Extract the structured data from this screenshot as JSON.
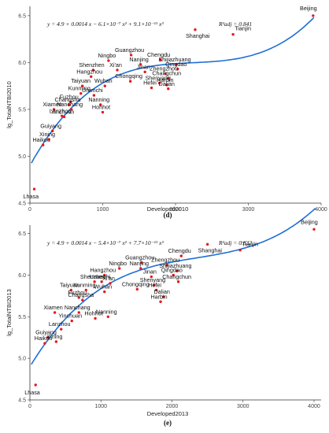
{
  "chart_data": [
    {
      "type": "scatter",
      "caption": "(d)",
      "xlabel": "Developed2010",
      "ylabel": "lg_TotalNTBI2010",
      "xlim": [
        0,
        4000
      ],
      "ylim": [
        4.5,
        6.6
      ],
      "xticks": [
        0,
        1000,
        2000,
        3000,
        4000
      ],
      "yticks": [
        4.5,
        5.0,
        5.5,
        6.0,
        6.5
      ],
      "equation": "y = 4.9 + 0.0014 x − 6.1×10⁻⁷ x² + 9.1×10⁻¹¹ x³",
      "r2": "R²adj = 0.841",
      "fit": {
        "a": 4.9,
        "b": 0.0014,
        "c": -6.1e-07,
        "d": 9.1e-11
      },
      "points": [
        {
          "name": "Beijing",
          "x": 3890,
          "y": 6.5
        },
        {
          "name": "Tianjin",
          "x": 2790,
          "y": 6.3
        },
        {
          "name": "Shanghai",
          "x": 2270,
          "y": 6.35
        },
        {
          "name": "Guangzhou",
          "x": 1390,
          "y": 6.08
        },
        {
          "name": "Chengdu",
          "x": 1790,
          "y": 6.03
        },
        {
          "name": "Ningbo",
          "x": 1080,
          "y": 6.02
        },
        {
          "name": "Nanjing",
          "x": 1520,
          "y": 5.98
        },
        {
          "name": "Shijiazhuang",
          "x": 2010,
          "y": 5.98
        },
        {
          "name": "Shenzhen",
          "x": 870,
          "y": 5.92
        },
        {
          "name": "Xi'an",
          "x": 1200,
          "y": 5.92
        },
        {
          "name": "Qingdao",
          "x": 2030,
          "y": 5.93
        },
        {
          "name": "Jinan",
          "x": 1580,
          "y": 5.9
        },
        {
          "name": "Zhengzhou",
          "x": 1860,
          "y": 5.88
        },
        {
          "name": "Hangzhou",
          "x": 840,
          "y": 5.85
        },
        {
          "name": "Changchun",
          "x": 1900,
          "y": 5.83
        },
        {
          "name": "Shenyang",
          "x": 1780,
          "y": 5.78
        },
        {
          "name": "Taiyuan",
          "x": 720,
          "y": 5.75
        },
        {
          "name": "Wuhan",
          "x": 1030,
          "y": 5.75
        },
        {
          "name": "Chongqing",
          "x": 1380,
          "y": 5.8
        },
        {
          "name": "Harbin",
          "x": 1880,
          "y": 5.76
        },
        {
          "name": "Hefei",
          "x": 1670,
          "y": 5.73
        },
        {
          "name": "Dalian",
          "x": 1900,
          "y": 5.72
        },
        {
          "name": "Kunming",
          "x": 700,
          "y": 5.67
        },
        {
          "name": "Urumchi",
          "x": 880,
          "y": 5.65
        },
        {
          "name": "Fuzhou",
          "x": 560,
          "y": 5.58
        },
        {
          "name": "Changsha",
          "x": 540,
          "y": 5.55
        },
        {
          "name": "Nanning",
          "x": 970,
          "y": 5.55
        },
        {
          "name": "Xiamen",
          "x": 330,
          "y": 5.5
        },
        {
          "name": "Nanchang",
          "x": 570,
          "y": 5.5
        },
        {
          "name": "Hohhot",
          "x": 1000,
          "y": 5.47
        },
        {
          "name": "Lanzhou",
          "x": 440,
          "y": 5.43
        },
        {
          "name": "Yinchuan",
          "x": 470,
          "y": 5.42
        },
        {
          "name": "Guiyang",
          "x": 310,
          "y": 5.27
        },
        {
          "name": "Xining",
          "x": 260,
          "y": 5.18
        },
        {
          "name": "Haikou",
          "x": 180,
          "y": 5.12
        },
        {
          "name": "Lhasa",
          "x": 60,
          "y": 4.65
        }
      ]
    },
    {
      "type": "scatter",
      "caption": "(e)",
      "xlabel": "Developed2013",
      "ylabel": "lg_TotalNTBI2013",
      "xlim": [
        0,
        4100
      ],
      "ylim": [
        4.5,
        6.6
      ],
      "xticks": [
        0,
        1000,
        2000,
        3000,
        4000
      ],
      "yticks": [
        4.5,
        5.0,
        5.5,
        6.0,
        6.5
      ],
      "equation": "y = 4.9 + 0.0014 x − 5.4×10⁻⁷ x² + 7.7×10⁻¹¹ x³",
      "r2": "R²adj = 0.832",
      "fit": {
        "a": 4.9,
        "b": 0.0014,
        "c": -5.4e-07,
        "d": 7.7e-11
      },
      "points": [
        {
          "name": "Beijing",
          "x": 4000,
          "y": 6.55
        },
        {
          "name": "Shanghai",
          "x": 2500,
          "y": 6.37
        },
        {
          "name": "Tianjin",
          "x": 2960,
          "y": 6.3
        },
        {
          "name": "Chengdu",
          "x": 2130,
          "y": 6.23
        },
        {
          "name": "Guangzhou",
          "x": 1570,
          "y": 6.15
        },
        {
          "name": "Zhengzhou",
          "x": 1930,
          "y": 6.12
        },
        {
          "name": "Ningbo",
          "x": 1260,
          "y": 6.08
        },
        {
          "name": "Nanjing",
          "x": 1560,
          "y": 6.08
        },
        {
          "name": "Shijiazhuang",
          "x": 2070,
          "y": 6.05
        },
        {
          "name": "Hangzhou",
          "x": 1050,
          "y": 6.0
        },
        {
          "name": "Qingdao",
          "x": 2020,
          "y": 6.0
        },
        {
          "name": "Jinan",
          "x": 1710,
          "y": 5.98
        },
        {
          "name": "Shenzhen",
          "x": 910,
          "y": 5.92
        },
        {
          "name": "Urumchi",
          "x": 1010,
          "y": 5.92
        },
        {
          "name": "Xi'an",
          "x": 1130,
          "y": 5.9
        },
        {
          "name": "Changchun",
          "x": 2090,
          "y": 5.92
        },
        {
          "name": "Shenyang",
          "x": 1750,
          "y": 5.88
        },
        {
          "name": "Taiyuan",
          "x": 580,
          "y": 5.82
        },
        {
          "name": "Kunming",
          "x": 790,
          "y": 5.82
        },
        {
          "name": "Wuhan",
          "x": 1050,
          "y": 5.8
        },
        {
          "name": "Chongqing",
          "x": 1510,
          "y": 5.83
        },
        {
          "name": "Hefei",
          "x": 1780,
          "y": 5.82
        },
        {
          "name": "Dalian",
          "x": 1880,
          "y": 5.74
        },
        {
          "name": "Harbin",
          "x": 1840,
          "y": 5.68
        },
        {
          "name": "Fuzhou",
          "x": 690,
          "y": 5.73
        },
        {
          "name": "Changsha",
          "x": 740,
          "y": 5.7
        },
        {
          "name": "Xiamen",
          "x": 350,
          "y": 5.55
        },
        {
          "name": "Nanchang",
          "x": 690,
          "y": 5.55
        },
        {
          "name": "Hohhot",
          "x": 920,
          "y": 5.48
        },
        {
          "name": "Nanning",
          "x": 1100,
          "y": 5.5
        },
        {
          "name": "Yinchuan",
          "x": 590,
          "y": 5.45
        },
        {
          "name": "Lanzhou",
          "x": 440,
          "y": 5.35
        },
        {
          "name": "Guiyang",
          "x": 250,
          "y": 5.25
        },
        {
          "name": "Xining",
          "x": 370,
          "y": 5.2
        },
        {
          "name": "Haikou",
          "x": 210,
          "y": 5.18
        },
        {
          "name": "Lhasa",
          "x": 80,
          "y": 4.68
        }
      ]
    }
  ]
}
